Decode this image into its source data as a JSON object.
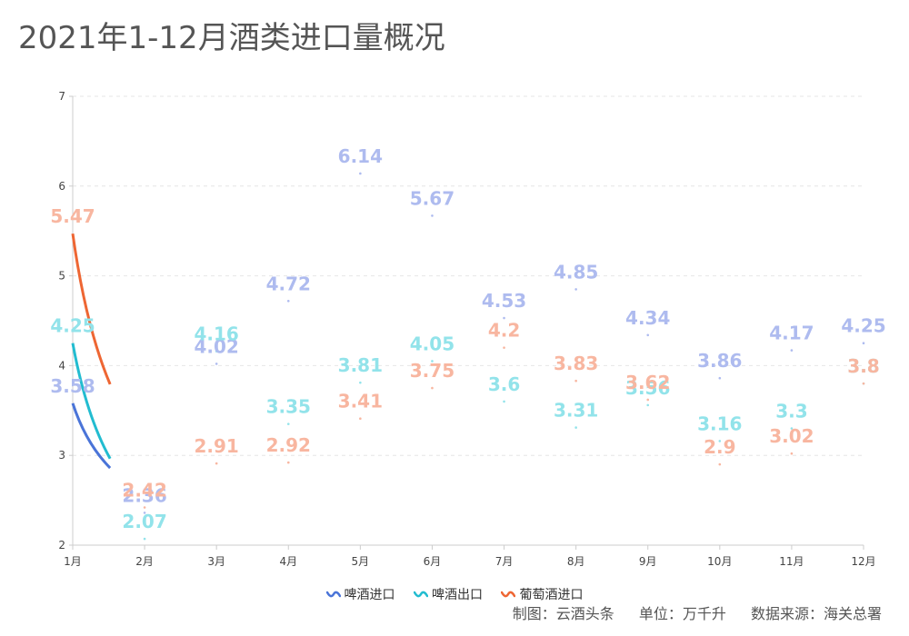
{
  "title": "2021年1-12月酒类进口量概况",
  "footer": {
    "maker": "制图：云酒头条",
    "unit": "单位：万千升",
    "source": "数据来源：海关总署"
  },
  "chart_data": {
    "type": "line",
    "title": "2021年1-12月酒类进口量概况",
    "categories": [
      "1月",
      "2月",
      "3月",
      "4月",
      "5月",
      "6月",
      "7月",
      "8月",
      "9月",
      "10月",
      "11月",
      "12月"
    ],
    "ylim": [
      2,
      7
    ],
    "yticks": [
      "2",
      "3",
      "4",
      "5",
      "6",
      "7"
    ],
    "grid": true,
    "legend_position": "bottom",
    "series": [
      {
        "name": "啤酒进口",
        "color": "#4a74d8",
        "label_color": "#aebbef",
        "values": [
          3.58,
          2.36,
          4.02,
          4.72,
          6.14,
          5.67,
          4.53,
          4.85,
          4.34,
          3.86,
          4.17,
          4.25
        ],
        "labels": [
          "3.58",
          "2.36",
          "4.02",
          "4.72",
          "6.14",
          "5.67",
          "4.53",
          "4.85",
          "4.34",
          "3.86",
          "4.17",
          "4.25"
        ]
      },
      {
        "name": "啤酒出口",
        "color": "#22bcd0",
        "label_color": "#92e3ea",
        "values": [
          4.25,
          2.07,
          4.16,
          3.35,
          3.81,
          4.05,
          3.6,
          3.31,
          3.56,
          3.16,
          3.3,
          3.8
        ],
        "labels": [
          "4.25",
          "2.07",
          "4.16",
          "3.35",
          "3.81",
          "4.05",
          "3.6",
          "3.31",
          "3.56",
          "3.16",
          "3.3",
          "3.8"
        ]
      },
      {
        "name": "葡萄酒进口",
        "color": "#ee6633",
        "label_color": "#f8b6a0",
        "values": [
          5.47,
          2.42,
          2.91,
          2.92,
          3.41,
          3.75,
          4.2,
          3.83,
          3.62,
          2.9,
          3.02,
          3.8
        ],
        "labels": [
          "5.47",
          "2.42",
          "2.91",
          "2.92",
          "3.41",
          "3.75",
          "4.2",
          "3.83",
          "3.62",
          "2.9",
          "3.02",
          "3.8"
        ]
      }
    ]
  }
}
